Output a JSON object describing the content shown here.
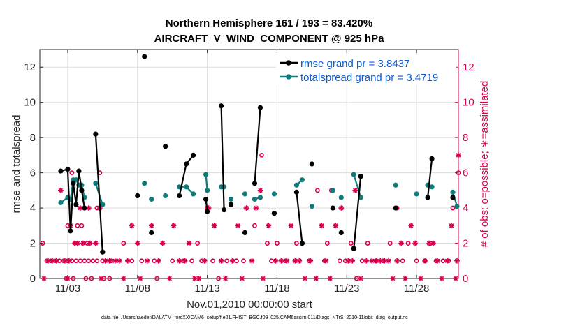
{
  "chart_data": {
    "type": "line",
    "title": "Northern Hemisphere 161 / 193 = 83.420%",
    "subtitle": "AIRCRAFT_V_WIND_COMPONENT @ 925 hPa",
    "xlabel": "Nov.01,2010 00:00:00 start",
    "ylabel": "rmse and totalspread",
    "y2label": "# of obs: o=possible; ∗=assimilated",
    "footnote": "data file: /Users/raeder/DAI/ATM_forcXX/CAM6_setup/f.e21.FHIST_BGC.f09_025.CAM6assim.011/Diags_NTrS_2010-11/obs_diag_output.nc",
    "xlim": [
      1,
      31
    ],
    "ylim": [
      0,
      13
    ],
    "y2lim": [
      0,
      13
    ],
    "x_tick_values": [
      3,
      8,
      13,
      18,
      23,
      28
    ],
    "x_tick_labels": [
      "11/03",
      "11/08",
      "11/13",
      "11/18",
      "11/23",
      "11/28"
    ],
    "y_ticks": [
      0,
      2,
      4,
      6,
      8,
      10,
      12
    ],
    "y2_ticks": [
      0,
      2,
      4,
      6,
      8,
      10,
      12
    ],
    "legend_position": "top-right",
    "colors": {
      "rmse": "#000000",
      "spread": "#0e7c7b",
      "obs": "#d6004f",
      "legend_text": "#0b5bd3"
    },
    "series": [
      {
        "name": "rmse grand pr = 3.8437",
        "key": "rmse",
        "points": [
          [
            2.5,
            6.1
          ],
          [
            3.0,
            6.2
          ],
          [
            3.2,
            2.7
          ],
          [
            3.4,
            5.4
          ],
          [
            3.6,
            4.2
          ],
          [
            3.8,
            6.1
          ],
          [
            4.0,
            5.0
          ],
          [
            4.2,
            4.0
          ],
          null,
          [
            5.0,
            8.2
          ],
          [
            5.5,
            1.5
          ],
          null,
          [
            8.0,
            4.7
          ],
          null,
          [
            8.5,
            12.6
          ],
          null,
          [
            9.0,
            2.6
          ],
          null,
          [
            10.0,
            7.5
          ],
          null,
          [
            11.0,
            4.7
          ],
          [
            11.5,
            6.5
          ],
          [
            12.0,
            7.0
          ],
          null,
          [
            12.9,
            4.5
          ],
          [
            13.0,
            3.8
          ],
          null,
          [
            14.0,
            9.8
          ],
          [
            14.2,
            3.9
          ],
          null,
          [
            14.7,
            4.2
          ],
          null,
          [
            15.7,
            2.6
          ],
          null,
          [
            16.4,
            5.4
          ],
          [
            16.8,
            9.7
          ],
          null,
          [
            17.8,
            3.7
          ],
          null,
          [
            19.4,
            4.9
          ],
          [
            19.8,
            2.0
          ],
          null,
          [
            20.5,
            6.5
          ],
          null,
          [
            22.0,
            4.0
          ],
          null,
          [
            22.6,
            2.6
          ],
          null,
          [
            23.5,
            1.7
          ],
          [
            24.0,
            5.8
          ],
          null,
          [
            26.5,
            4.0
          ],
          null,
          [
            28.8,
            4.6
          ],
          [
            29.1,
            6.8
          ],
          null,
          [
            30.6,
            4.6
          ]
        ]
      },
      {
        "name": "totalspread grand pr = 3.4719",
        "key": "spread",
        "points": [
          [
            2.5,
            4.3
          ],
          [
            3.0,
            4.6
          ],
          [
            3.2,
            4.5
          ],
          [
            3.4,
            5.6
          ],
          [
            3.6,
            5.6
          ],
          [
            3.8,
            5.3
          ],
          [
            4.0,
            5.3
          ],
          [
            4.2,
            4.6
          ],
          null,
          [
            5.0,
            5.4
          ],
          [
            5.5,
            4.2
          ],
          null,
          [
            8.0,
            4.7
          ],
          null,
          [
            8.5,
            5.4
          ],
          null,
          [
            9.0,
            4.5
          ],
          null,
          [
            10.0,
            4.7
          ],
          null,
          [
            11.0,
            5.2
          ],
          [
            11.5,
            5.2
          ],
          [
            12.0,
            4.8
          ],
          null,
          [
            12.9,
            5.9
          ],
          [
            13.0,
            5.0
          ],
          null,
          [
            14.0,
            5.2
          ],
          [
            14.2,
            5.2
          ],
          null,
          [
            14.7,
            4.5
          ],
          null,
          [
            15.7,
            4.8
          ],
          null,
          [
            16.4,
            4.5
          ],
          [
            16.8,
            4.6
          ],
          null,
          [
            17.8,
            4.8
          ],
          null,
          [
            19.4,
            5.3
          ],
          [
            19.8,
            5.6
          ],
          null,
          [
            20.5,
            4.1
          ],
          null,
          [
            22.0,
            5.0
          ],
          null,
          [
            22.6,
            4.6
          ],
          null,
          [
            23.5,
            5.9
          ],
          [
            24.0,
            4.6
          ],
          null,
          [
            26.5,
            5.3
          ],
          null,
          [
            28.0,
            4.8
          ],
          null,
          [
            28.8,
            5.3
          ],
          [
            29.1,
            5.2
          ],
          null,
          [
            30.6,
            4.9
          ],
          [
            30.9,
            4.1
          ]
        ]
      }
    ],
    "obs_possible": [
      [
        1.2,
        2
      ],
      [
        1.5,
        1
      ],
      [
        1.8,
        1
      ],
      [
        2.1,
        1
      ],
      [
        2.4,
        1
      ],
      [
        2.7,
        1
      ],
      [
        3.0,
        1
      ],
      [
        3.3,
        1
      ],
      [
        3.6,
        1
      ],
      [
        3.9,
        1
      ],
      [
        4.2,
        1
      ],
      [
        4.5,
        1
      ],
      [
        4.8,
        1
      ],
      [
        5.1,
        1
      ],
      [
        2.9,
        0
      ],
      [
        3.4,
        0
      ],
      [
        4.3,
        0
      ],
      [
        4.7,
        0
      ],
      [
        5.6,
        0
      ],
      [
        6.0,
        0
      ],
      [
        3.0,
        3
      ],
      [
        3.3,
        6
      ],
      [
        3.7,
        3
      ],
      [
        4.0,
        3
      ],
      [
        4.4,
        2
      ],
      [
        5.3,
        6
      ],
      [
        5.1,
        4
      ],
      [
        5.5,
        1
      ],
      [
        6.1,
        1
      ],
      [
        7.0,
        2
      ],
      [
        7.6,
        1
      ],
      [
        8.3,
        1
      ],
      [
        9.2,
        1
      ],
      [
        9.4,
        0
      ],
      [
        10.5,
        1
      ],
      [
        11.3,
        1
      ],
      [
        11.9,
        1
      ],
      [
        12.3,
        2
      ],
      [
        12.6,
        1
      ],
      [
        13.0,
        4
      ],
      [
        13.4,
        1
      ],
      [
        13.8,
        0
      ],
      [
        14.4,
        1
      ],
      [
        15.1,
        1
      ],
      [
        15.6,
        1
      ],
      [
        16.4,
        3
      ],
      [
        16.9,
        7
      ],
      [
        17.3,
        2
      ],
      [
        17.6,
        1
      ],
      [
        18.0,
        2
      ],
      [
        18.6,
        1
      ],
      [
        19.4,
        2
      ],
      [
        19.8,
        2
      ],
      [
        20.3,
        1
      ],
      [
        20.9,
        5
      ],
      [
        21.4,
        1
      ],
      [
        21.6,
        2
      ],
      [
        21.9,
        5
      ],
      [
        22.5,
        1
      ],
      [
        22.9,
        1
      ],
      [
        23.3,
        2
      ],
      [
        23.7,
        0
      ],
      [
        24.1,
        1
      ],
      [
        24.5,
        2
      ],
      [
        25.1,
        1
      ],
      [
        25.6,
        1
      ],
      [
        26.1,
        2
      ],
      [
        26.6,
        4
      ],
      [
        27.0,
        1
      ],
      [
        27.4,
        2
      ],
      [
        28.0,
        1
      ],
      [
        28.6,
        1
      ],
      [
        29.0,
        2
      ],
      [
        29.4,
        1
      ],
      [
        29.9,
        1
      ],
      [
        30.3,
        1
      ],
      [
        30.6,
        4
      ],
      [
        31.0,
        6
      ]
    ],
    "obs_assimilated": [
      [
        1.3,
        0
      ],
      [
        1.6,
        1
      ],
      [
        1.9,
        1
      ],
      [
        2.2,
        1
      ],
      [
        2.5,
        5
      ],
      [
        2.8,
        1
      ],
      [
        3.1,
        1
      ],
      [
        3.0,
        0
      ],
      [
        3.2,
        3
      ],
      [
        3.5,
        2
      ],
      [
        3.7,
        2
      ],
      [
        3.9,
        4
      ],
      [
        4.1,
        2
      ],
      [
        4.5,
        4
      ],
      [
        4.6,
        2
      ],
      [
        5.0,
        2
      ],
      [
        5.3,
        4
      ],
      [
        5.7,
        1
      ],
      [
        6.0,
        1
      ],
      [
        5.4,
        0
      ],
      [
        6.4,
        1
      ],
      [
        6.7,
        1
      ],
      [
        7.0,
        0
      ],
      [
        7.3,
        1
      ],
      [
        7.6,
        3
      ],
      [
        8.0,
        2
      ],
      [
        8.2,
        0
      ],
      [
        8.7,
        1
      ],
      [
        9.0,
        3
      ],
      [
        9.5,
        1
      ],
      [
        9.8,
        2
      ],
      [
        10.3,
        0
      ],
      [
        10.6,
        3
      ],
      [
        11.0,
        1
      ],
      [
        11.4,
        1
      ],
      [
        11.7,
        2
      ],
      [
        12.1,
        0
      ],
      [
        12.4,
        0
      ],
      [
        12.8,
        1
      ],
      [
        13.1,
        4
      ],
      [
        13.5,
        3
      ],
      [
        14.0,
        1
      ],
      [
        14.3,
        0
      ],
      [
        14.8,
        1
      ],
      [
        15.2,
        3
      ],
      [
        15.5,
        0
      ],
      [
        15.8,
        4
      ],
      [
        16.2,
        1
      ],
      [
        16.5,
        4
      ],
      [
        16.8,
        5
      ],
      [
        17.0,
        0
      ],
      [
        17.4,
        3
      ],
      [
        17.9,
        1
      ],
      [
        18.3,
        1
      ],
      [
        18.7,
        1
      ],
      [
        19.0,
        3
      ],
      [
        19.3,
        1
      ],
      [
        19.6,
        1
      ],
      [
        20.0,
        0
      ],
      [
        20.4,
        1
      ],
      [
        20.8,
        0
      ],
      [
        21.2,
        3
      ],
      [
        21.5,
        1
      ],
      [
        21.8,
        0
      ],
      [
        22.2,
        3
      ],
      [
        22.6,
        4
      ],
      [
        23.1,
        1
      ],
      [
        23.4,
        1
      ],
      [
        23.6,
        5
      ],
      [
        24.0,
        0
      ],
      [
        24.4,
        1
      ],
      [
        24.8,
        1
      ],
      [
        25.1,
        1
      ],
      [
        25.4,
        1
      ],
      [
        25.7,
        1
      ],
      [
        26.0,
        1
      ],
      [
        26.3,
        0
      ],
      [
        26.6,
        1
      ],
      [
        26.9,
        2
      ],
      [
        27.2,
        0
      ],
      [
        27.6,
        3
      ],
      [
        27.9,
        2
      ],
      [
        28.3,
        0
      ],
      [
        28.6,
        1
      ],
      [
        28.9,
        2
      ],
      [
        29.2,
        2
      ],
      [
        29.5,
        1
      ],
      [
        29.8,
        0
      ],
      [
        30.2,
        1
      ],
      [
        30.5,
        3
      ],
      [
        30.8,
        0
      ],
      [
        31.0,
        7
      ],
      [
        30.9,
        1
      ]
    ]
  }
}
